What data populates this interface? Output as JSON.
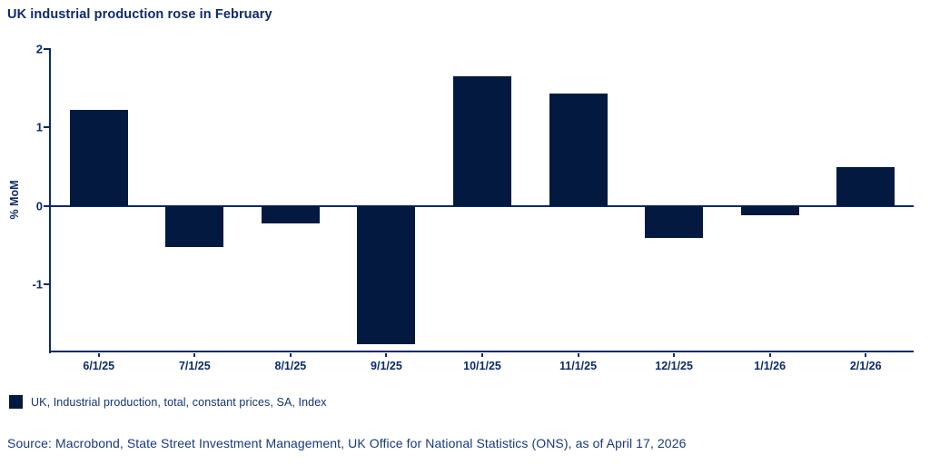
{
  "title": "UK industrial production rose in February",
  "chart_data": {
    "type": "bar",
    "categories": [
      "6/1/25",
      "7/1/25",
      "8/1/25",
      "9/1/25",
      "10/1/25",
      "11/1/25",
      "12/1/25",
      "1/1/26",
      "2/1/26"
    ],
    "values": [
      1.22,
      -0.52,
      -0.22,
      -1.76,
      1.65,
      1.43,
      -0.4,
      -0.12,
      0.5
    ],
    "series_name": "UK, Industrial production, total, constant prices, SA, Index",
    "title": "UK industrial production rose in February",
    "xlabel": "",
    "ylabel": "% MoM",
    "ylim": [
      -1.85,
      2.01
    ],
    "yticks": [
      2,
      1,
      0,
      -1
    ],
    "grid": false,
    "legend_position": "bottom-left",
    "bar_color": "#031940"
  },
  "legend": {
    "label": "UK, Industrial production, total, constant prices, SA, Index",
    "swatch_color": "#031940"
  },
  "source": "Source: Macrobond, State Street Investment Management, UK Office for National Statistics (ONS), as of April 17, 2026",
  "colors": {
    "bar_navy": "#031940",
    "axis_navy": "#0c2a6e",
    "title_text": "#0c2a6e",
    "muted_text": "#163a7d"
  }
}
